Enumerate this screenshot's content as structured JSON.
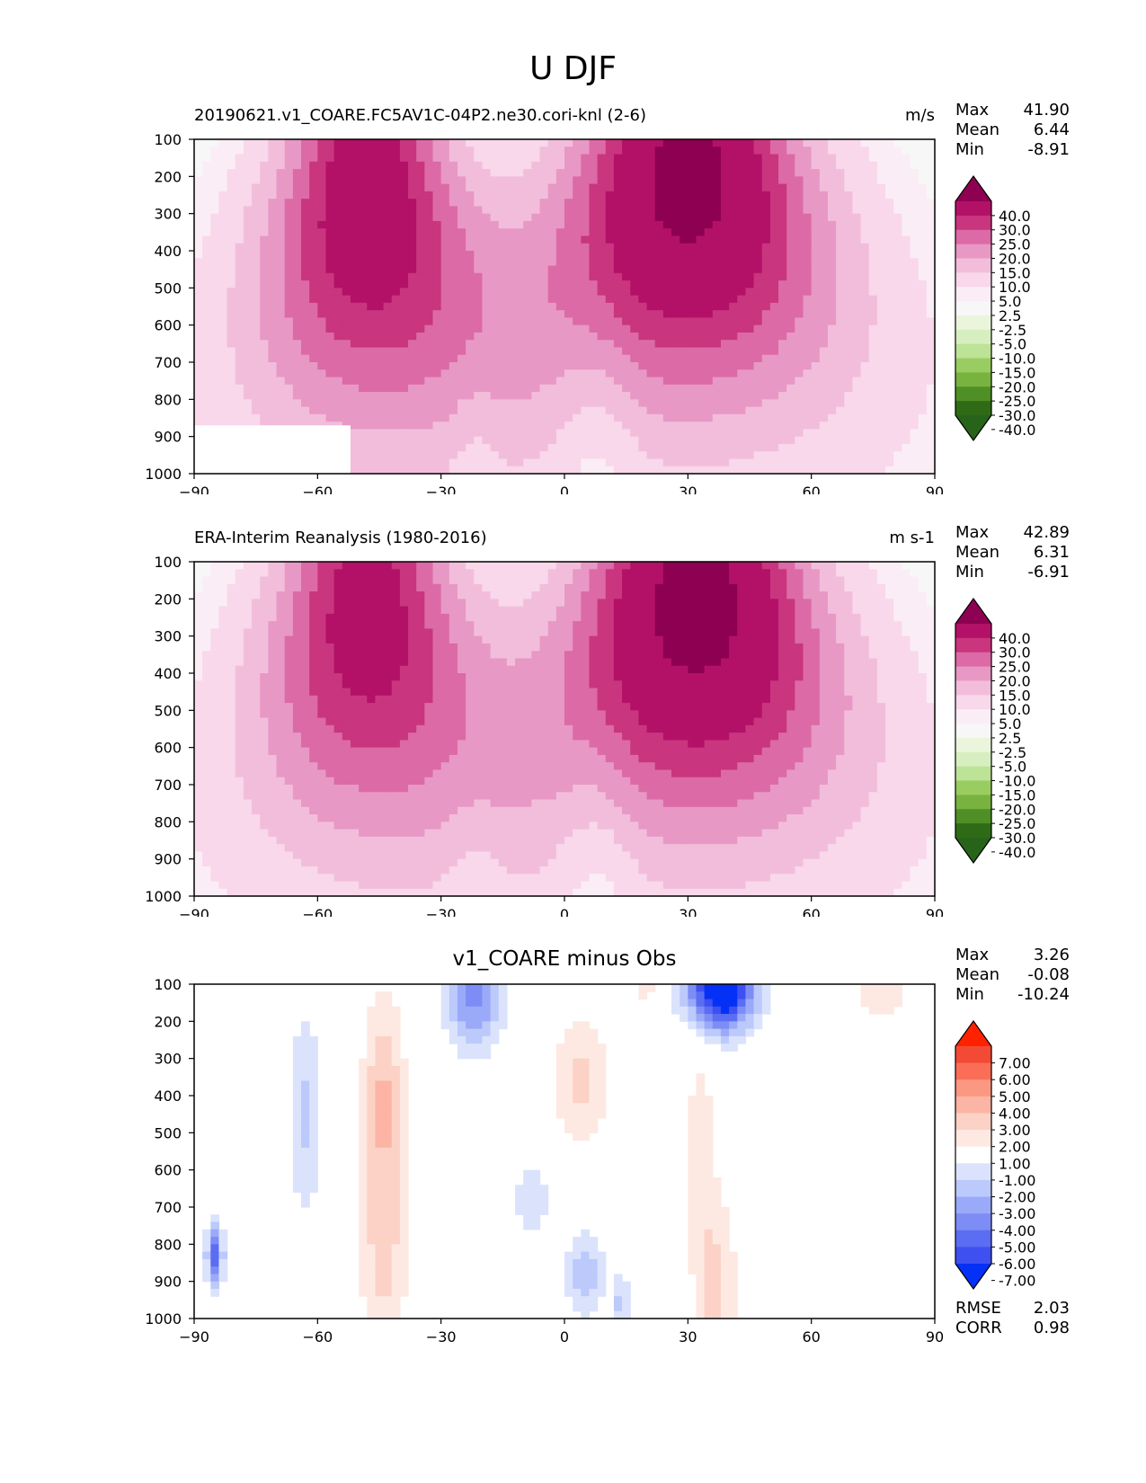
{
  "page": {
    "title": "U DJF"
  },
  "chart_data": [
    {
      "type": "contour",
      "title": "20190621.v1_COARE.FC5AV1C-04P2.ne30.cori-knl (2-6)",
      "units": "m/s",
      "stats": {
        "max_label": "Max",
        "mean_label": "Mean",
        "min_label": "Min",
        "max": "41.90",
        "mean": "6.44",
        "min": "-8.91"
      },
      "x_ticks": [
        "−90",
        "−60",
        "−30",
        "0",
        "30",
        "60",
        "90"
      ],
      "x_tick_values": [
        -90,
        -60,
        -30,
        0,
        30,
        60,
        90
      ],
      "y_ticks": [
        "100",
        "200",
        "300",
        "400",
        "500",
        "600",
        "700",
        "800",
        "900",
        "1000"
      ],
      "y_tick_values": [
        100,
        200,
        300,
        400,
        500,
        600,
        700,
        800,
        900,
        1000
      ],
      "xlim": [
        -90,
        90
      ],
      "ylim": [
        100,
        1000
      ],
      "colorbar": {
        "labels": [
          "40.0",
          "30.0",
          "25.0",
          "20.0",
          "15.0",
          "10.0",
          "5.0",
          "2.5",
          "-2.5",
          "-5.0",
          "-10.0",
          "-15.0",
          "-20.0",
          "-25.0",
          "-30.0",
          "-40.0"
        ],
        "colors": [
          "#8e0152",
          "#b31167",
          "#c9357f",
          "#dc6aa6",
          "#e898c5",
          "#f2bddb",
          "#f8d8ea",
          "#fbedf5",
          "#f7f7f7",
          "#eaf5dc",
          "#d7efc0",
          "#bde396",
          "#9acd61",
          "#78b33f",
          "#4f8f26",
          "#2f6b17",
          "#276419"
        ]
      },
      "jets": [
        {
          "lat": -48,
          "top": 100,
          "bottom": 1000,
          "core_p": 260,
          "core_u": 35,
          "width_lat": 24
        },
        {
          "lat": 30,
          "top": 100,
          "bottom": 1000,
          "core_p": 200,
          "core_u": 41.9,
          "width_lat": 30
        }
      ]
    },
    {
      "type": "contour",
      "title": "ERA-Interim Reanalysis (1980-2016)",
      "units": "m s-1",
      "stats": {
        "max_label": "Max",
        "mean_label": "Mean",
        "min_label": "Min",
        "max": "42.89",
        "mean": "6.31",
        "min": "-6.91"
      },
      "x_ticks": [
        "−90",
        "−60",
        "−30",
        "0",
        "30",
        "60",
        "90"
      ],
      "x_tick_values": [
        -90,
        -60,
        -30,
        0,
        30,
        60,
        90
      ],
      "y_ticks": [
        "100",
        "200",
        "300",
        "400",
        "500",
        "600",
        "700",
        "800",
        "900",
        "1000"
      ],
      "y_tick_values": [
        100,
        200,
        300,
        400,
        500,
        600,
        700,
        800,
        900,
        1000
      ],
      "xlim": [
        -90,
        90
      ],
      "ylim": [
        100,
        1000
      ],
      "colorbar": {
        "labels": [
          "40.0",
          "30.0",
          "25.0",
          "20.0",
          "15.0",
          "10.0",
          "5.0",
          "2.5",
          "-2.5",
          "-5.0",
          "-10.0",
          "-15.0",
          "-20.0",
          "-25.0",
          "-30.0",
          "-40.0"
        ],
        "colors": [
          "#8e0152",
          "#b31167",
          "#c9357f",
          "#dc6aa6",
          "#e898c5",
          "#f2bddb",
          "#f8d8ea",
          "#fbedf5",
          "#f7f7f7",
          "#eaf5dc",
          "#d7efc0",
          "#bde396",
          "#9acd61",
          "#78b33f",
          "#4f8f26",
          "#2f6b17",
          "#276419"
        ]
      },
      "jets": [
        {
          "lat": -48,
          "top": 100,
          "bottom": 1000,
          "core_p": 230,
          "core_u": 33,
          "width_lat": 24
        },
        {
          "lat": 32,
          "top": 100,
          "bottom": 1000,
          "core_p": 200,
          "core_u": 42.9,
          "width_lat": 30
        }
      ]
    },
    {
      "type": "contour",
      "title": "v1_COARE minus Obs",
      "units": "",
      "stats": {
        "max_label": "Max",
        "mean_label": "Mean",
        "min_label": "Min",
        "max": "3.26",
        "mean": "-0.08",
        "min": "-10.24",
        "rmse_label": "RMSE",
        "corr_label": "CORR",
        "rmse": "2.03",
        "corr": "0.98"
      },
      "x_ticks": [
        "−90",
        "−60",
        "−30",
        "0",
        "30",
        "60",
        "90"
      ],
      "x_tick_values": [
        -90,
        -60,
        -30,
        0,
        30,
        60,
        90
      ],
      "y_ticks": [
        "100",
        "200",
        "300",
        "400",
        "500",
        "600",
        "700",
        "800",
        "900",
        "1000"
      ],
      "y_tick_values": [
        100,
        200,
        300,
        400,
        500,
        600,
        700,
        800,
        900,
        1000
      ],
      "xlim": [
        -90,
        90
      ],
      "ylim": [
        100,
        1000
      ],
      "colorbar": {
        "labels": [
          "7.00",
          "6.00",
          "5.00",
          "4.00",
          "3.00",
          "2.00",
          "1.00",
          "-1.00",
          "-2.00",
          "-3.00",
          "-4.00",
          "-5.00",
          "-6.00",
          "-7.00"
        ],
        "colors": [
          "#ff2200",
          "#f24a35",
          "#fa6e58",
          "#fb9882",
          "#fcb4a4",
          "#fcd2c6",
          "#fde9e2",
          "#ffffff",
          "#dbe3fc",
          "#bcc9fb",
          "#9aaaf8",
          "#7d8df5",
          "#5b6df2",
          "#3e50f0",
          "#0530f5"
        ]
      },
      "anomalies": [
        {
          "lat": -44,
          "p": 420,
          "v": 3.2,
          "r_lat": 5,
          "r_p": 280
        },
        {
          "lat": -44,
          "p": 850,
          "v": 2.2,
          "r_lat": 6,
          "r_p": 250
        },
        {
          "lat": 4,
          "p": 360,
          "v": 2.4,
          "r_lat": 7,
          "r_p": 170
        },
        {
          "lat": 37,
          "p": 930,
          "v": 2.2,
          "r_lat": 5,
          "r_p": 260
        },
        {
          "lat": 33,
          "p": 520,
          "v": 1.4,
          "r_lat": 4,
          "r_p": 400
        },
        {
          "lat": 77,
          "p": 130,
          "v": 1.3,
          "r_lat": 9,
          "r_p": 90
        },
        {
          "lat": 20,
          "p": 110,
          "v": 1.3,
          "r_lat": 4,
          "r_p": 50
        },
        {
          "lat": 38,
          "p": 100,
          "v": -10.2,
          "r_lat": 8,
          "r_p": 120
        },
        {
          "lat": -22,
          "p": 120,
          "v": -4.5,
          "r_lat": 7,
          "r_p": 150
        },
        {
          "lat": -63,
          "p": 450,
          "v": -2.2,
          "r_lat": 4,
          "r_p": 280
        },
        {
          "lat": 5,
          "p": 880,
          "v": -2.6,
          "r_lat": 5,
          "r_p": 120
        },
        {
          "lat": -8,
          "p": 680,
          "v": -1.6,
          "r_lat": 5,
          "r_p": 120
        },
        {
          "lat": -85,
          "p": 830,
          "v": -5.5,
          "r_lat": 2,
          "r_p": 90
        },
        {
          "lat": 14,
          "p": 960,
          "v": -2.5,
          "r_lat": 2,
          "r_p": 80
        }
      ]
    }
  ]
}
